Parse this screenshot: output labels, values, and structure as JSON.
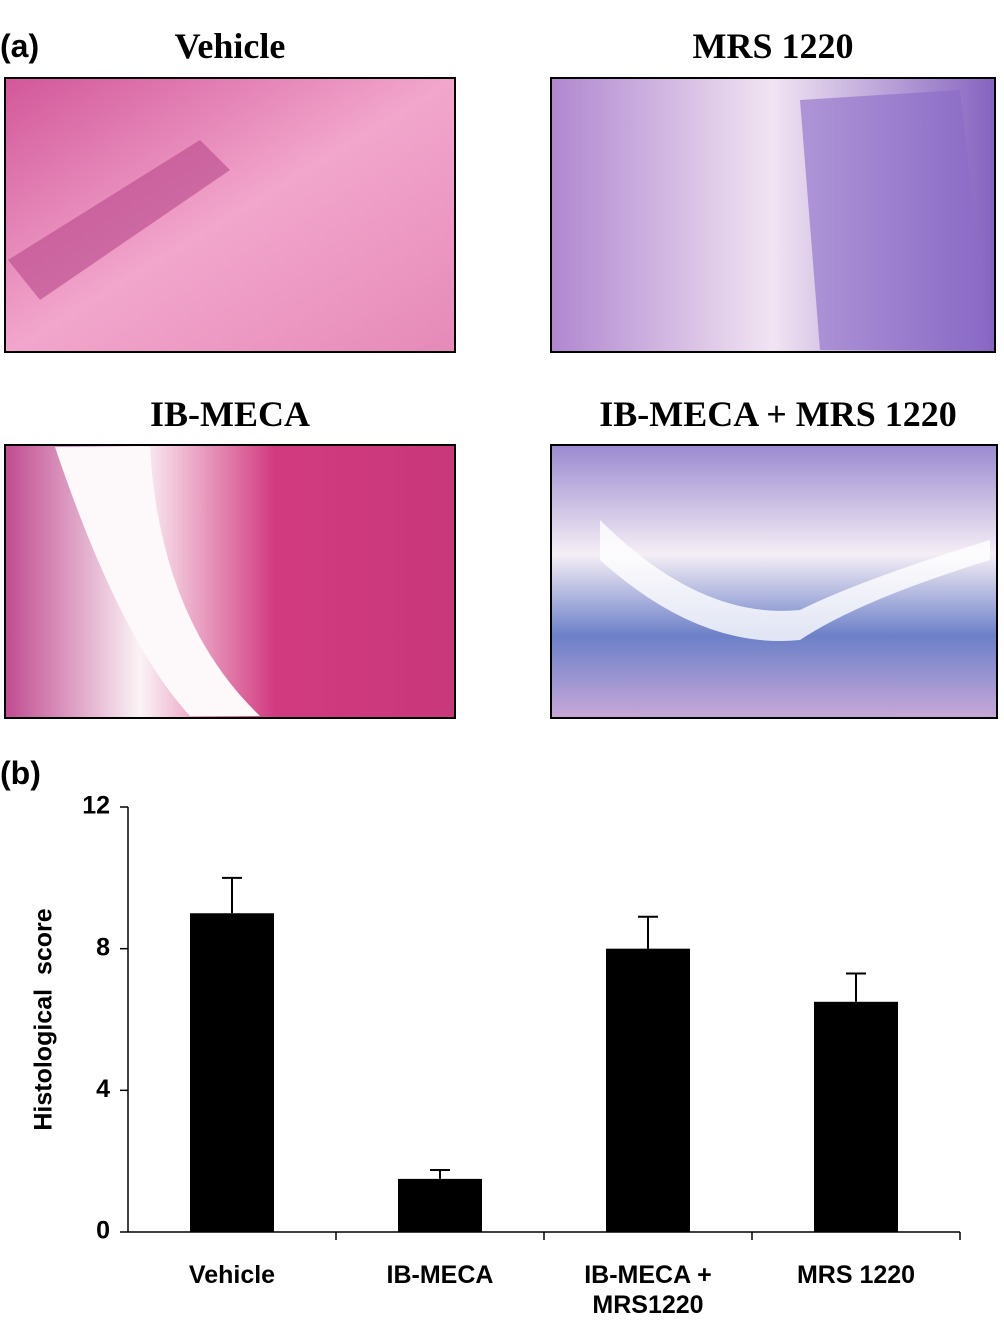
{
  "panel_a": {
    "label": "(a)",
    "images": [
      {
        "title": "Vehicle"
      },
      {
        "title": "MRS 1220"
      },
      {
        "title": "IB-MECA"
      },
      {
        "title": "IB-MECA + MRS 1220"
      }
    ]
  },
  "panel_b": {
    "label": "(b)"
  },
  "chart_data": {
    "type": "bar",
    "ylabel": "Histological  score",
    "categories": [
      "Vehicle",
      "IB-MECA",
      "IB-MECA + MRS1220",
      "MRS 1220"
    ],
    "values": [
      9,
      1.5,
      8,
      6.5
    ],
    "errors": [
      1.0,
      0.25,
      0.9,
      0.8
    ],
    "color": "#000000",
    "ylim": [
      0,
      12
    ],
    "yticks": [
      0,
      4,
      8,
      12
    ],
    "grid": false
  }
}
